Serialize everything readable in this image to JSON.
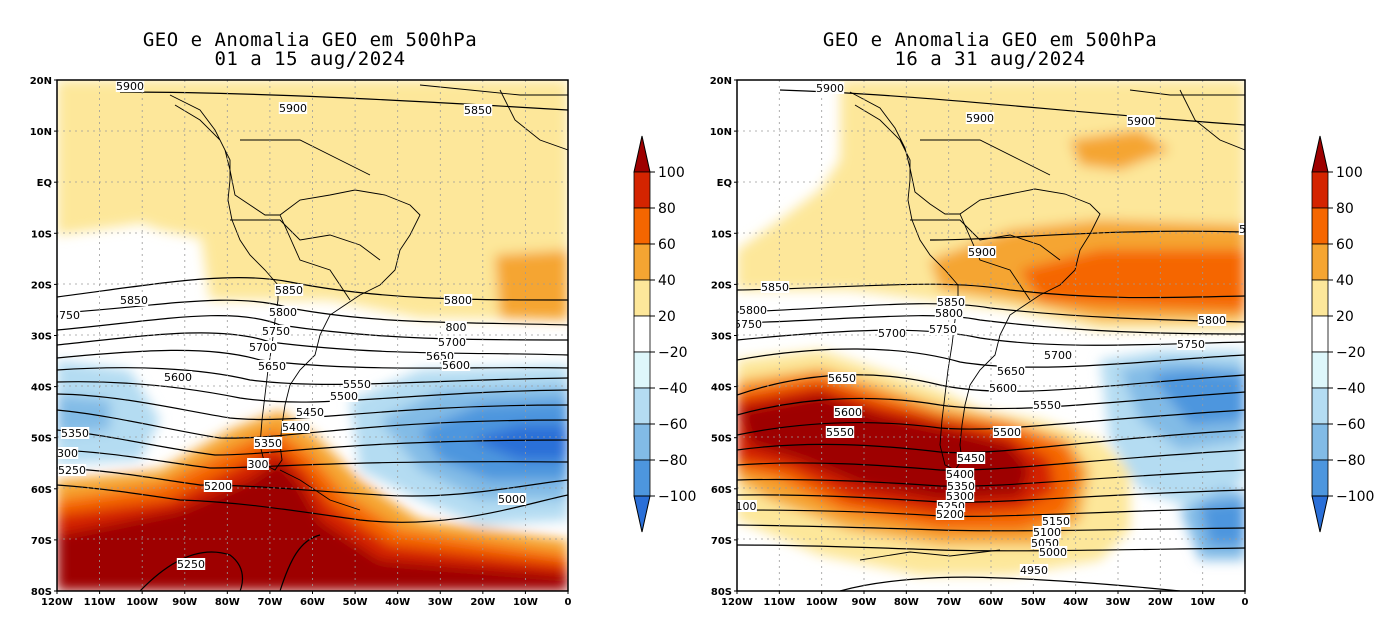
{
  "panels": [
    {
      "title_line1": "GEO e Anomalia GEO em 500hPa",
      "title_line2": "01 a 15 aug/2024",
      "contour_labels": [
        "5900",
        "5900",
        "5850",
        "5850",
        "5850",
        "5800",
        "5800",
        "800",
        "5750",
        "5750",
        "5700",
        "5700",
        "5650",
        "5650",
        "5600",
        "5600",
        "5550",
        "5500",
        "5450",
        "5400",
        "5350",
        "5350",
        "300",
        "5300",
        "5250",
        "5200",
        "5000",
        "5250"
      ]
    },
    {
      "title_line1": "GEO e Anomalia GEO em 500hPa",
      "title_line2": "16 a 31 aug/2024",
      "contour_labels": [
        "5900",
        "5900",
        "5900",
        "5900",
        "5900",
        "5850",
        "5850",
        "5850",
        "5800",
        "5800",
        "5800",
        "5750",
        "5750",
        "5750",
        "5700",
        "5700",
        "5650",
        "5650",
        "5600",
        "5600",
        "5550",
        "5550",
        "5500",
        "5450",
        "5400",
        "5350",
        "5300",
        "5250",
        "5200",
        "5150",
        "5100",
        "5050",
        "5000",
        "4950",
        "100"
      ]
    }
  ],
  "lat_labels": [
    "20N",
    "10N",
    "EQ",
    "10S",
    "20S",
    "30S",
    "40S",
    "50S",
    "60S",
    "70S",
    "80S"
  ],
  "lon_labels": [
    "120W",
    "110W",
    "100W",
    "90W",
    "80W",
    "70W",
    "60W",
    "50W",
    "40W",
    "30W",
    "20W",
    "10W",
    "0"
  ],
  "colorbar": {
    "labels": [
      "100",
      "80",
      "60",
      "40",
      "20",
      "−20",
      "−40",
      "−60",
      "−80",
      "−100"
    ],
    "colors": [
      "#9e0000",
      "#d42400",
      "#f56600",
      "#f5a532",
      "#fde79a",
      "#ffffff",
      "#def7fb",
      "#b4dcf2",
      "#82bbe6",
      "#4d96de",
      "#2a6fd8"
    ]
  }
}
